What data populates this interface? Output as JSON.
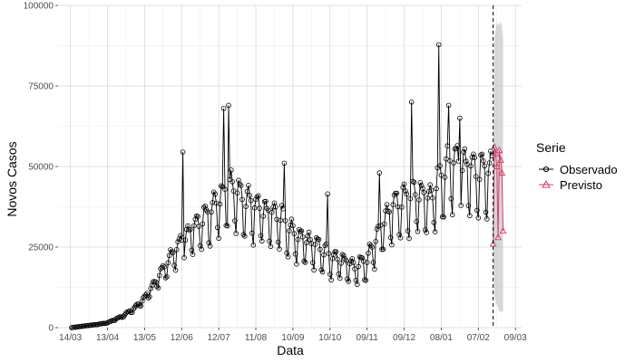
{
  "chart_data": {
    "type": "line",
    "xlabel": "Data",
    "ylabel": "Novos Casos",
    "ylim": [
      0,
      100000
    ],
    "y_ticks": [
      0,
      25000,
      50000,
      75000,
      100000
    ],
    "y_tick_labels": [
      "0",
      "25000",
      "50000",
      "75000",
      "100000"
    ],
    "x_ticks": [
      {
        "date": "2020-03-14",
        "label": "14/03"
      },
      {
        "date": "2020-04-13",
        "label": "13/04"
      },
      {
        "date": "2020-05-13",
        "label": "13/05"
      },
      {
        "date": "2020-06-12",
        "label": "12/06"
      },
      {
        "date": "2020-07-12",
        "label": "12/07"
      },
      {
        "date": "2020-08-11",
        "label": "11/08"
      },
      {
        "date": "2020-09-10",
        "label": "10/09"
      },
      {
        "date": "2020-10-10",
        "label": "10/10"
      },
      {
        "date": "2020-11-09",
        "label": "09/11"
      },
      {
        "date": "2020-12-09",
        "label": "09/12"
      },
      {
        "date": "2021-01-08",
        "label": "08/01"
      },
      {
        "date": "2021-02-07",
        "label": "07/02"
      },
      {
        "date": "2021-03-09",
        "label": "09/03"
      }
    ],
    "xlim": [
      "2020-03-04",
      "2021-03-14"
    ],
    "forecast_start": "2021-02-19",
    "grid": true,
    "legend_position": "right",
    "legend_title": "Serie",
    "series": [
      {
        "name": "Observado",
        "color": "#000000",
        "marker": "circle",
        "anchors": [
          {
            "x": "2020-03-15",
            "y": 0
          },
          {
            "x": "2020-03-25",
            "y": 500
          },
          {
            "x": "2020-04-05",
            "y": 1000
          },
          {
            "x": "2020-04-13",
            "y": 1500
          },
          {
            "x": "2020-04-25",
            "y": 3500
          },
          {
            "x": "2020-05-05",
            "y": 6000
          },
          {
            "x": "2020-05-13",
            "y": 9000
          },
          {
            "x": "2020-05-22",
            "y": 14000
          },
          {
            "x": "2020-06-01",
            "y": 20000
          },
          {
            "x": "2020-06-12",
            "y": 26000
          },
          {
            "x": "2020-06-22",
            "y": 30000
          },
          {
            "x": "2020-07-02",
            "y": 33000
          },
          {
            "x": "2020-07-12",
            "y": 38000
          },
          {
            "x": "2020-07-22",
            "y": 42000
          },
          {
            "x": "2020-08-01",
            "y": 38000
          },
          {
            "x": "2020-08-11",
            "y": 36000
          },
          {
            "x": "2020-08-21",
            "y": 34000
          },
          {
            "x": "2020-08-31",
            "y": 33000
          },
          {
            "x": "2020-09-10",
            "y": 28000
          },
          {
            "x": "2020-09-20",
            "y": 26000
          },
          {
            "x": "2020-10-01",
            "y": 24000
          },
          {
            "x": "2020-10-10",
            "y": 21000
          },
          {
            "x": "2020-10-20",
            "y": 20000
          },
          {
            "x": "2020-10-30",
            "y": 18000
          },
          {
            "x": "2020-11-09",
            "y": 20000
          },
          {
            "x": "2020-11-20",
            "y": 30000
          },
          {
            "x": "2020-11-30",
            "y": 36000
          },
          {
            "x": "2020-12-09",
            "y": 38000
          },
          {
            "x": "2020-12-20",
            "y": 40000
          },
          {
            "x": "2020-12-30",
            "y": 38000
          },
          {
            "x": "2021-01-08",
            "y": 45000
          },
          {
            "x": "2021-01-18",
            "y": 50000
          },
          {
            "x": "2021-01-28",
            "y": 48000
          },
          {
            "x": "2021-02-07",
            "y": 46000
          },
          {
            "x": "2021-02-18",
            "y": 47000
          }
        ],
        "amplitude_anchors": [
          {
            "x": "2020-03-15",
            "a": 0
          },
          {
            "x": "2020-04-13",
            "a": 0.12
          },
          {
            "x": "2020-05-13",
            "a": 0.25
          },
          {
            "x": "2020-06-12",
            "a": 0.35
          },
          {
            "x": "2020-07-12",
            "a": 0.42
          },
          {
            "x": "2021-02-18",
            "a": 0.42
          }
        ],
        "spikes": [
          {
            "x": "2020-06-13",
            "y": 54500
          },
          {
            "x": "2020-07-16",
            "y": 68000
          },
          {
            "x": "2020-07-20",
            "y": 69000
          },
          {
            "x": "2020-12-15",
            "y": 70000
          },
          {
            "x": "2021-01-06",
            "y": 87800
          },
          {
            "x": "2021-01-14",
            "y": 69000
          },
          {
            "x": "2021-01-23",
            "y": 65000
          },
          {
            "x": "2020-09-03",
            "y": 51000
          },
          {
            "x": "2020-11-19",
            "y": 48000
          },
          {
            "x": "2020-10-08",
            "y": 41500
          }
        ]
      },
      {
        "name": "Previsto",
        "color": "#d0426a",
        "marker": "triangle",
        "points": [
          {
            "x": "2021-02-19",
            "y": 26000
          },
          {
            "x": "2021-02-20",
            "y": 56000
          },
          {
            "x": "2021-02-21",
            "y": 54000
          },
          {
            "x": "2021-02-22",
            "y": 50000
          },
          {
            "x": "2021-02-23",
            "y": 28000
          },
          {
            "x": "2021-02-24",
            "y": 55000
          },
          {
            "x": "2021-02-25",
            "y": 52000
          },
          {
            "x": "2021-02-26",
            "y": 48000
          },
          {
            "x": "2021-02-27",
            "y": 30000
          }
        ],
        "interval": {
          "lower": [
            22000,
            10000,
            8000,
            7000,
            6000,
            5000,
            5000,
            5000,
            5000
          ],
          "upper": [
            45000,
            90000,
            92000,
            95000,
            94000,
            94000,
            95000,
            94000,
            90000
          ]
        }
      }
    ]
  }
}
